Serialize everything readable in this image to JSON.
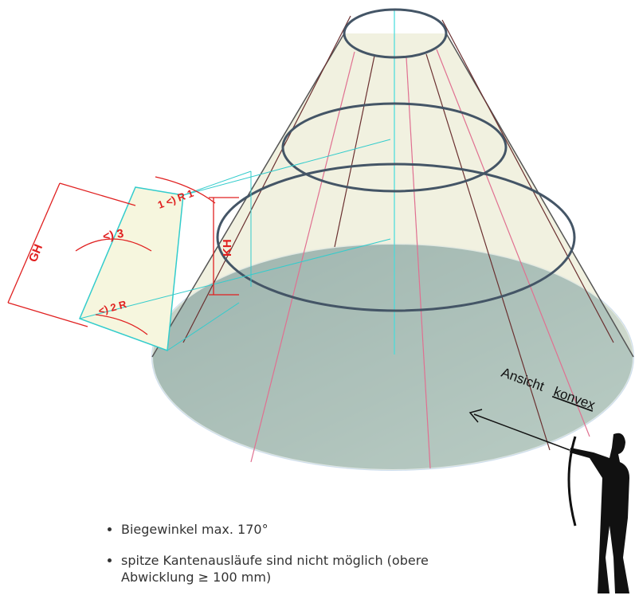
{
  "drawing": {
    "labels": {
      "gh": "GH",
      "kh": "KH",
      "angle3": "<) 3",
      "angle1": "1 <) R 1",
      "angle2": "<) 2 R"
    },
    "annotation": {
      "word1": "Ansicht",
      "word2": "konvex"
    },
    "bullets": [
      "Biegewinkel max. 170°",
      "spitze Kantenausläufe sind nicht möglich (obere Abwicklung ≥ 100 mm)"
    ]
  }
}
